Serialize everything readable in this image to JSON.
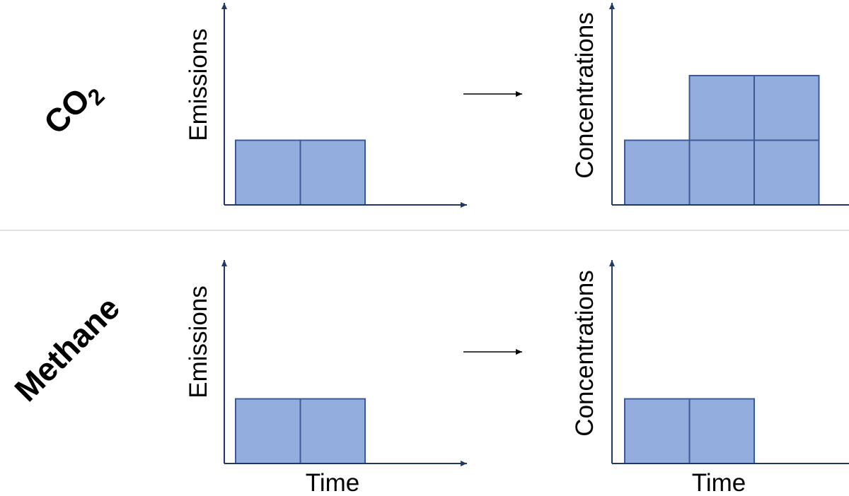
{
  "colors": {
    "cell_fill": "#93ADDF",
    "cell_stroke": "#3E5A96",
    "axis": "#1F3864",
    "divider": "#D9D9D9",
    "arrow": "#000000"
  },
  "rows": [
    {
      "gas": {
        "main": "CO",
        "subscript": "2"
      },
      "emissions": {
        "ylabel": "Emissions",
        "xlabel": "",
        "columns": [
          1,
          1,
          0,
          0
        ]
      },
      "concentrations": {
        "ylabel": "Concentrations",
        "xlabel": "",
        "columns": [
          1,
          2,
          2,
          0
        ]
      }
    },
    {
      "gas": {
        "main": "Methane",
        "subscript": ""
      },
      "emissions": {
        "ylabel": "Emissions",
        "xlabel": "Time",
        "columns": [
          1,
          1,
          0,
          0
        ]
      },
      "concentrations": {
        "ylabel": "Concentrations",
        "xlabel": "Time",
        "columns": [
          1,
          1,
          0,
          0
        ]
      }
    }
  ]
}
